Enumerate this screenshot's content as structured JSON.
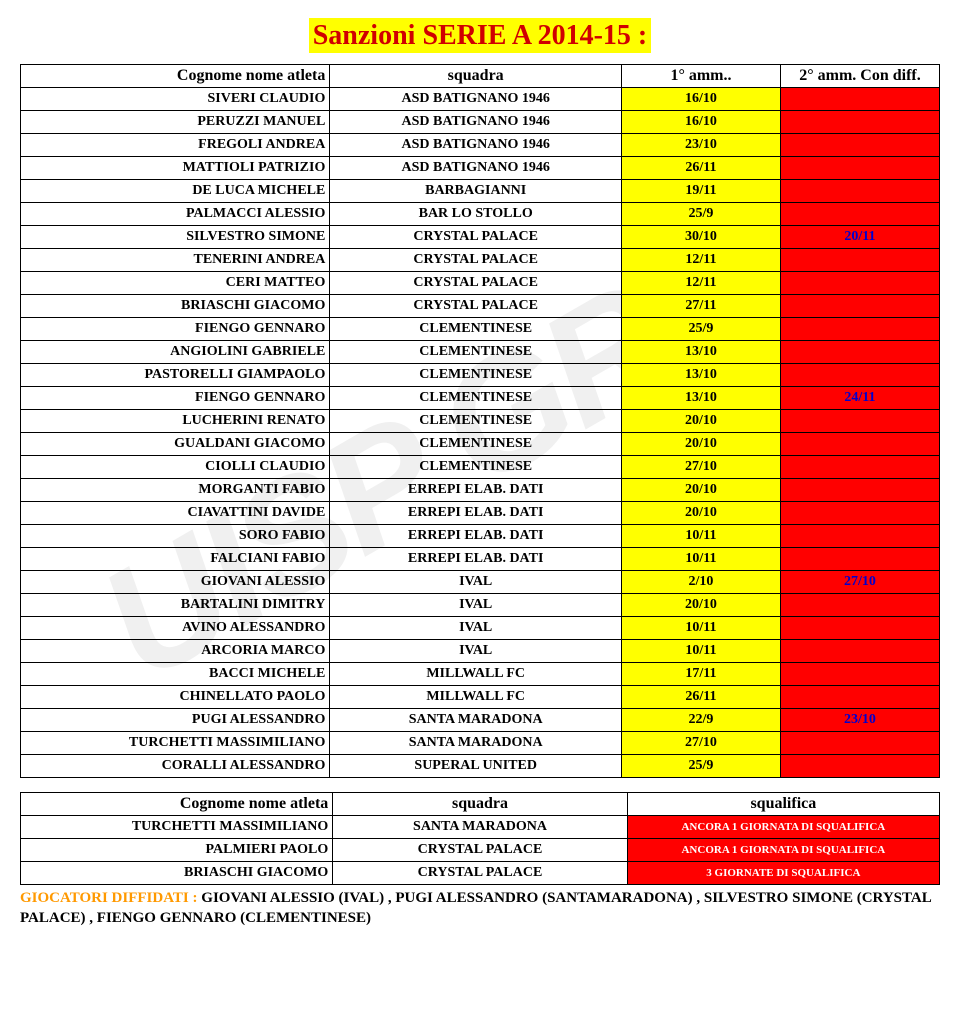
{
  "colors": {
    "yellow": "#ffff00",
    "red": "#ff0000",
    "title_red": "#d00000",
    "title_blue": "#0000d0",
    "diffidati_orange": "#ff9900",
    "white": "#ffffff",
    "black": "#000000"
  },
  "title": "Sanzioni  SERIE A 2014-15  :",
  "table1": {
    "headers": [
      "Cognome nome atleta",
      "squadra",
      "1° amm..",
      "2° amm. Con diff."
    ],
    "rows": [
      {
        "name": "SIVERI CLAUDIO",
        "team": "ASD BATIGNANO 1946",
        "a1": "16/10",
        "a2": ""
      },
      {
        "name": "PERUZZI MANUEL",
        "team": "ASD BATIGNANO 1946",
        "a1": "16/10",
        "a2": ""
      },
      {
        "name": "FREGOLI ANDREA",
        "team": "ASD BATIGNANO 1946",
        "a1": "23/10",
        "a2": ""
      },
      {
        "name": "MATTIOLI PATRIZIO",
        "team": "ASD BATIGNANO 1946",
        "a1": "26/11",
        "a2": ""
      },
      {
        "name": "DE LUCA MICHELE",
        "team": "BARBAGIANNI",
        "a1": "19/11",
        "a2": ""
      },
      {
        "name": "PALMACCI ALESSIO",
        "team": "BAR LO STOLLO",
        "a1": "25/9",
        "a2": ""
      },
      {
        "name": "SILVESTRO SIMONE",
        "team": "CRYSTAL PALACE",
        "a1": "30/10",
        "a2": "20/11"
      },
      {
        "name": "TENERINI ANDREA",
        "team": "CRYSTAL PALACE",
        "a1": "12/11",
        "a2": ""
      },
      {
        "name": "CERI MATTEO",
        "team": "CRYSTAL PALACE",
        "a1": "12/11",
        "a2": ""
      },
      {
        "name": "BRIASCHI GIACOMO",
        "team": "CRYSTAL PALACE",
        "a1": "27/11",
        "a2": ""
      },
      {
        "name": "FIENGO GENNARO",
        "team": "CLEMENTINESE",
        "a1": "25/9",
        "a2": ""
      },
      {
        "name": "ANGIOLINI GABRIELE",
        "team": "CLEMENTINESE",
        "a1": "13/10",
        "a2": ""
      },
      {
        "name": "PASTORELLI GIAMPAOLO",
        "team": "CLEMENTINESE",
        "a1": "13/10",
        "a2": ""
      },
      {
        "name": "FIENGO GENNARO",
        "team": "CLEMENTINESE",
        "a1": "13/10",
        "a2": "24/11"
      },
      {
        "name": "LUCHERINI RENATO",
        "team": "CLEMENTINESE",
        "a1": "20/10",
        "a2": ""
      },
      {
        "name": "GUALDANI GIACOMO",
        "team": "CLEMENTINESE",
        "a1": "20/10",
        "a2": ""
      },
      {
        "name": "CIOLLI CLAUDIO",
        "team": "CLEMENTINESE",
        "a1": "27/10",
        "a2": ""
      },
      {
        "name": "MORGANTI FABIO",
        "team": "ERREPI ELAB. DATI",
        "a1": "20/10",
        "a2": ""
      },
      {
        "name": "CIAVATTINI DAVIDE",
        "team": "ERREPI ELAB. DATI",
        "a1": "20/10",
        "a2": ""
      },
      {
        "name": "SORO FABIO",
        "team": "ERREPI ELAB. DATI",
        "a1": "10/11",
        "a2": ""
      },
      {
        "name": "FALCIANI FABIO",
        "team": "ERREPI ELAB. DATI",
        "a1": "10/11",
        "a2": ""
      },
      {
        "name": "GIOVANI ALESSIO",
        "team": "IVAL",
        "a1": "2/10",
        "a2": "27/10"
      },
      {
        "name": "BARTALINI DIMITRY",
        "team": "IVAL",
        "a1": "20/10",
        "a2": ""
      },
      {
        "name": "AVINO ALESSANDRO",
        "team": "IVAL",
        "a1": "10/11",
        "a2": ""
      },
      {
        "name": "ARCORIA MARCO",
        "team": "IVAL",
        "a1": "10/11",
        "a2": ""
      },
      {
        "name": "BACCI MICHELE",
        "team": "MILLWALL FC",
        "a1": "17/11",
        "a2": ""
      },
      {
        "name": "CHINELLATO PAOLO",
        "team": "MILLWALL FC",
        "a1": "26/11",
        "a2": ""
      },
      {
        "name": "PUGI ALESSANDRO",
        "team": "SANTA MARADONA",
        "a1": "22/9",
        "a2": "23/10"
      },
      {
        "name": "TURCHETTI MASSIMILIANO",
        "team": "SANTA MARADONA",
        "a1": "27/10",
        "a2": ""
      },
      {
        "name": "CORALLI ALESSANDRO",
        "team": "SUPERAL UNITED",
        "a1": "25/9",
        "a2": ""
      }
    ]
  },
  "table2": {
    "headers": [
      "Cognome nome atleta",
      "squadra",
      "squalifica"
    ],
    "rows": [
      {
        "name": "TURCHETTI MASSIMILIANO",
        "team": "SANTA MARADONA",
        "sq": "ANCORA 1 GIORNATA DI SQUALIFICA"
      },
      {
        "name": "PALMIERI PAOLO",
        "team": "CRYSTAL PALACE",
        "sq": "ANCORA 1 GIORNATA DI SQUALIFICA"
      },
      {
        "name": "BRIASCHI GIACOMO",
        "team": "CRYSTAL PALACE",
        "sq": "3 GIORNATE DI SQUALIFICA"
      }
    ]
  },
  "footer": {
    "prefix": "GIOCATORI DIFFIDATI : ",
    "rest": "GIOVANI ALESSIO (IVAL) , PUGI ALESSANDRO (SANTAMARADONA) , SILVESTRO SIMONE (CRYSTAL PALACE) , FIENGO GENNARO (CLEMENTINESE)"
  },
  "watermark": "UISP GROS"
}
